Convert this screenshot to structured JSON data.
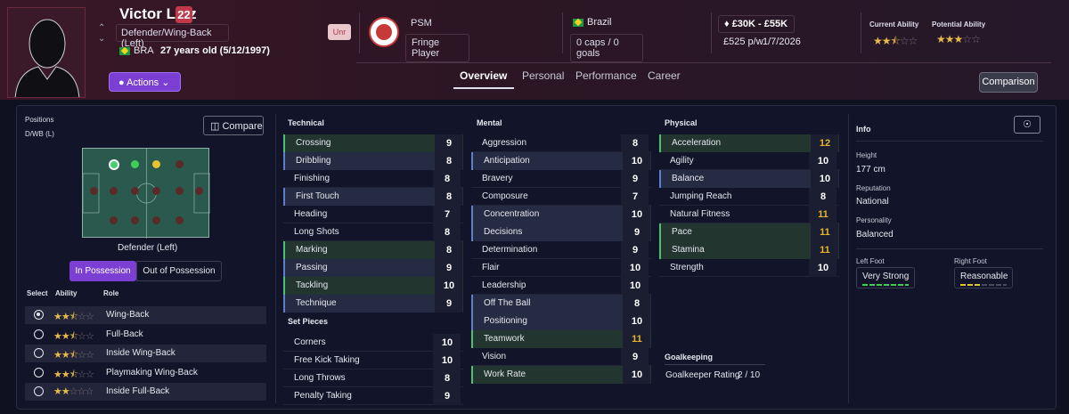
{
  "header": {
    "name": "Victor Luiz",
    "number": "22",
    "position": "Defender/Wing-Back (Left)",
    "nation_code": "BRA",
    "age": "27 years old (5/12/1997)",
    "unr": "Unr",
    "club": "PSM",
    "squad_status": "Fringe Player",
    "nation": "Brazil",
    "caps": "0 caps / 0 goals",
    "value": "£30K - £55K",
    "wage": "£525 p/w",
    "contract": "1/7/2026",
    "current_ability_label": "Current Ability",
    "current_ability": 2.5,
    "potential_ability_label": "Potential Ability",
    "potential_ability": 3,
    "actions": "Actions",
    "comparison": "Comparison",
    "tabs": [
      "Overview",
      "Personal",
      "Performance",
      "Career"
    ]
  },
  "positions": {
    "title": "Positions",
    "code": "D/WB (L)",
    "compare": "Compare",
    "selected": "Defender (Left)",
    "in_possession": "In Possession",
    "out_possession": "Out of Possession",
    "col_select": "Select",
    "col_ability": "Ability",
    "col_role": "Role",
    "roles": [
      {
        "name": "Wing-Back",
        "stars": 2.5,
        "selected": true
      },
      {
        "name": "Full-Back",
        "stars": 2.5,
        "selected": false
      },
      {
        "name": "Inside Wing-Back",
        "stars": 2.5,
        "selected": false
      },
      {
        "name": "Playmaking Wing-Back",
        "stars": 2.5,
        "selected": false
      },
      {
        "name": "Inside Full-Back",
        "stars": 2,
        "selected": false
      }
    ]
  },
  "technical": {
    "title": "Technical",
    "items": [
      {
        "name": "Crossing",
        "value": "9",
        "hl": "green"
      },
      {
        "name": "Dribbling",
        "value": "8",
        "hl": "blue"
      },
      {
        "name": "Finishing",
        "value": "8",
        "hl": ""
      },
      {
        "name": "First Touch",
        "value": "8",
        "hl": "blue"
      },
      {
        "name": "Heading",
        "value": "7",
        "hl": ""
      },
      {
        "name": "Long Shots",
        "value": "8",
        "hl": ""
      },
      {
        "name": "Marking",
        "value": "8",
        "hl": "green"
      },
      {
        "name": "Passing",
        "value": "9",
        "hl": "blue"
      },
      {
        "name": "Tackling",
        "value": "10",
        "hl": "green"
      },
      {
        "name": "Technique",
        "value": "9",
        "hl": "blue"
      }
    ]
  },
  "set_pieces": {
    "title": "Set Pieces",
    "items": [
      {
        "name": "Corners",
        "value": "10"
      },
      {
        "name": "Free Kick Taking",
        "value": "10"
      },
      {
        "name": "Long Throws",
        "value": "8"
      },
      {
        "name": "Penalty Taking",
        "value": "9"
      }
    ]
  },
  "mental": {
    "title": "Mental",
    "items": [
      {
        "name": "Aggression",
        "value": "8",
        "hl": ""
      },
      {
        "name": "Anticipation",
        "value": "10",
        "hl": "blue"
      },
      {
        "name": "Bravery",
        "value": "9",
        "hl": ""
      },
      {
        "name": "Composure",
        "value": "7",
        "hl": ""
      },
      {
        "name": "Concentration",
        "value": "10",
        "hl": "blue"
      },
      {
        "name": "Decisions",
        "value": "9",
        "hl": "blue"
      },
      {
        "name": "Determination",
        "value": "9",
        "hl": ""
      },
      {
        "name": "Flair",
        "value": "10",
        "hl": ""
      },
      {
        "name": "Leadership",
        "value": "10",
        "hl": ""
      },
      {
        "name": "Off The Ball",
        "value": "8",
        "hl": "blue"
      },
      {
        "name": "Positioning",
        "value": "10",
        "hl": "blue"
      },
      {
        "name": "Teamwork",
        "value": "11",
        "hl": "green",
        "gold": true
      },
      {
        "name": "Vision",
        "value": "9",
        "hl": ""
      },
      {
        "name": "Work Rate",
        "value": "10",
        "hl": "green"
      }
    ]
  },
  "physical": {
    "title": "Physical",
    "items": [
      {
        "name": "Acceleration",
        "value": "12",
        "hl": "green",
        "gold": true
      },
      {
        "name": "Agility",
        "value": "10",
        "hl": ""
      },
      {
        "name": "Balance",
        "value": "10",
        "hl": "blue"
      },
      {
        "name": "Jumping Reach",
        "value": "8",
        "hl": ""
      },
      {
        "name": "Natural Fitness",
        "value": "11",
        "hl": "",
        "gold": true
      },
      {
        "name": "Pace",
        "value": "11",
        "hl": "green",
        "gold": true
      },
      {
        "name": "Stamina",
        "value": "11",
        "hl": "green",
        "gold": true
      },
      {
        "name": "Strength",
        "value": "10",
        "hl": ""
      }
    ]
  },
  "goalkeeping": {
    "title": "Goalkeeping",
    "rating_label": "Goalkeeper Rating",
    "rating": "2 / 10"
  },
  "info": {
    "title": "Info",
    "height_label": "Height",
    "height": "177 cm",
    "reputation_label": "Reputation",
    "reputation": "National",
    "personality_label": "Personality",
    "personality": "Balanced",
    "left_foot_label": "Left Foot",
    "left_foot": "Very Strong",
    "right_foot_label": "Right Foot",
    "right_foot": "Reasonable"
  }
}
